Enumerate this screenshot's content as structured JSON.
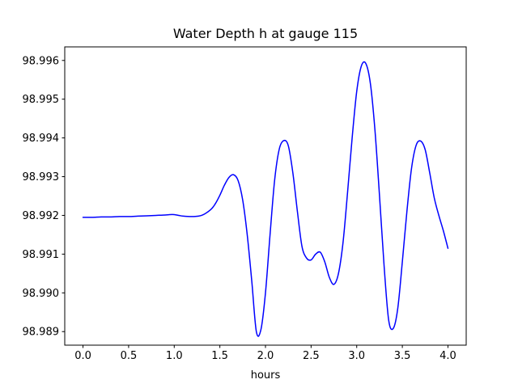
{
  "figure": {
    "background": "#ffffff"
  },
  "chart_data": {
    "type": "line",
    "title": "Water Depth h at gauge 115",
    "xlabel": "hours",
    "ylabel": "",
    "grid": false,
    "legend_position": "none",
    "line_color": "#0000ff",
    "line_width": 1.5,
    "axes_color": "#000000",
    "xlim": [
      -0.2,
      4.2
    ],
    "ylim": [
      98.98865,
      98.99635
    ],
    "xticks": [
      0.0,
      0.5,
      1.0,
      1.5,
      2.0,
      2.5,
      3.0,
      3.5,
      4.0
    ],
    "xtick_labels": [
      "0.0",
      "0.5",
      "1.0",
      "1.5",
      "2.0",
      "2.5",
      "3.0",
      "3.5",
      "4.0"
    ],
    "yticks": [
      98.989,
      98.99,
      98.991,
      98.992,
      98.993,
      98.994,
      98.995,
      98.996
    ],
    "ytick_labels": [
      "98.989",
      "98.990",
      "98.991",
      "98.992",
      "98.993",
      "98.994",
      "98.995",
      "98.996"
    ],
    "series": [
      {
        "name": "h",
        "x": [
          0.0,
          0.1,
          0.2,
          0.3,
          0.4,
          0.5,
          0.6,
          0.7,
          0.8,
          0.9,
          0.95,
          1.0,
          1.05,
          1.1,
          1.2,
          1.3,
          1.4,
          1.45,
          1.5,
          1.55,
          1.6,
          1.65,
          1.7,
          1.75,
          1.8,
          1.85,
          1.9,
          1.95,
          2.0,
          2.05,
          2.1,
          2.15,
          2.2,
          2.25,
          2.3,
          2.35,
          2.4,
          2.45,
          2.5,
          2.55,
          2.6,
          2.65,
          2.7,
          2.75,
          2.8,
          2.85,
          2.9,
          2.95,
          3.0,
          3.05,
          3.1,
          3.15,
          3.2,
          3.25,
          3.3,
          3.35,
          3.4,
          3.45,
          3.5,
          3.55,
          3.6,
          3.65,
          3.7,
          3.75,
          3.8,
          3.85,
          3.9,
          3.95,
          4.0
        ],
        "y": [
          98.99195,
          98.99195,
          98.99196,
          98.99196,
          98.99197,
          98.99197,
          98.99198,
          98.99199,
          98.992,
          98.99201,
          98.99202,
          98.99202,
          98.992,
          98.99198,
          98.99197,
          98.992,
          98.99215,
          98.9923,
          98.99252,
          98.99278,
          98.99298,
          98.99305,
          98.9929,
          98.9924,
          98.9915,
          98.9903,
          98.989,
          98.98905,
          98.99,
          98.9915,
          98.9929,
          98.9937,
          98.99393,
          98.9938,
          98.9931,
          98.9921,
          98.9912,
          98.9909,
          98.99085,
          98.991,
          98.99105,
          98.9908,
          98.9904,
          98.99022,
          98.9905,
          98.9913,
          98.9926,
          98.994,
          98.9952,
          98.99585,
          98.99592,
          98.9954,
          98.9942,
          98.9925,
          98.9907,
          98.9893,
          98.98908,
          98.9896,
          98.9908,
          98.9921,
          98.9932,
          98.9938,
          98.99392,
          98.9937,
          98.9931,
          98.99245,
          98.992,
          98.9916,
          98.99115
        ]
      }
    ]
  }
}
